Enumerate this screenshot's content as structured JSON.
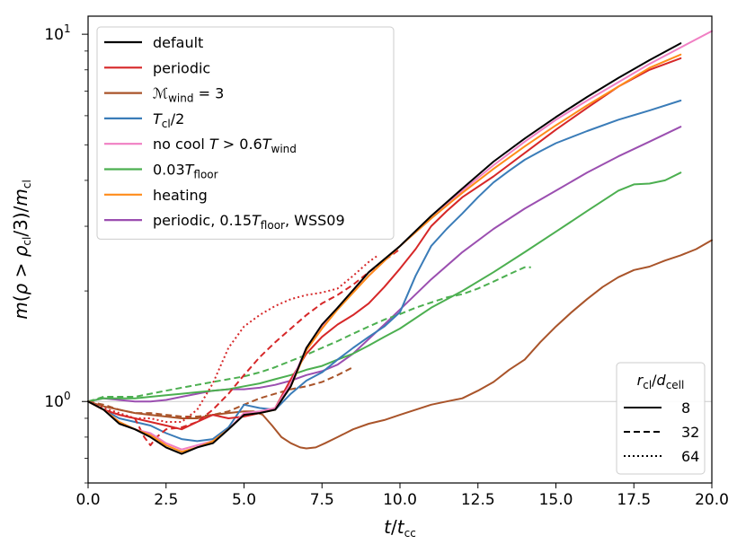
{
  "chart_data": {
    "type": "line",
    "title": "",
    "xlabel": {
      "main": "t/t",
      "sub": "cc"
    },
    "ylabel": {
      "main": "m(ρ > ρ",
      "sub1": "cl",
      "mid": "/3)/m",
      "sub2": "cl"
    },
    "xlim": [
      0,
      20
    ],
    "ylim": [
      0.6,
      11.2
    ],
    "yscale": "log",
    "grid": false,
    "x_ticks": [
      {
        "value": 0,
        "label": "0.0"
      },
      {
        "value": 2.5,
        "label": "2.5"
      },
      {
        "value": 5,
        "label": "5.0"
      },
      {
        "value": 7.5,
        "label": "7.5"
      },
      {
        "value": 10,
        "label": "10.0"
      },
      {
        "value": 12.5,
        "label": "12.5"
      },
      {
        "value": 15,
        "label": "15.0"
      },
      {
        "value": 17.5,
        "label": "17.5"
      },
      {
        "value": 20,
        "label": "20.0"
      }
    ],
    "y_ticks": [
      {
        "value": 1,
        "base": "10",
        "exp": "0"
      },
      {
        "value": 10,
        "base": "10",
        "exp": "1"
      }
    ],
    "reference_line": {
      "y": 1,
      "color": "#cccccc"
    },
    "legend_series": {
      "position": "top-left",
      "entries": [
        {
          "color": "#000000",
          "parts": [
            {
              "t": "default"
            }
          ]
        },
        {
          "color": "#d62728",
          "parts": [
            {
              "t": "periodic"
            }
          ]
        },
        {
          "color": "#a9542a",
          "parts": [
            {
              "t": "ℳ",
              "cls": "it"
            },
            {
              "t": "wind",
              "sub": true
            },
            {
              "t": " = 3"
            }
          ]
        },
        {
          "color": "#3a7cb8",
          "parts": [
            {
              "t": "T",
              "it": true
            },
            {
              "t": "cl",
              "sub": true
            },
            {
              "t": "/2"
            }
          ]
        },
        {
          "color": "#f07fc3",
          "parts": [
            {
              "t": "no cool "
            },
            {
              "t": "T",
              "it": true
            },
            {
              "t": " > 0.6"
            },
            {
              "t": "T",
              "it": true
            },
            {
              "t": "wind",
              "sub": true
            }
          ]
        },
        {
          "color": "#4caf50",
          "parts": [
            {
              "t": "0.03"
            },
            {
              "t": "T",
              "it": true
            },
            {
              "t": "floor",
              "sub": true
            }
          ]
        },
        {
          "color": "#ff8c1a",
          "parts": [
            {
              "t": "heating"
            }
          ]
        },
        {
          "color": "#9b4fb0",
          "parts": [
            {
              "t": "periodic, 0.15"
            },
            {
              "t": "T",
              "it": true
            },
            {
              "t": "floor",
              "sub": true
            },
            {
              "t": ", WSS09"
            }
          ]
        }
      ]
    },
    "legend_resolution": {
      "position": "bottom-right",
      "title": {
        "main": "r",
        "sub1": "cl",
        "mid": "/d",
        "sub2": "cell"
      },
      "entries": [
        {
          "style": "solid",
          "label": "8"
        },
        {
          "style": "dashed",
          "label": "32"
        },
        {
          "style": "dotted",
          "label": "64"
        }
      ]
    },
    "series": [
      {
        "name": "periodic, 0.15Tfloor, WSS09",
        "resolution": "8",
        "color": "#9b4fb0",
        "style": "solid",
        "x": [
          0,
          0.5,
          1,
          1.5,
          2,
          2.5,
          3,
          3.5,
          4,
          4.5,
          5,
          5.5,
          6,
          6.5,
          7,
          7.5,
          8,
          8.5,
          9,
          9.5,
          10,
          11,
          12,
          13,
          14,
          15,
          16,
          17,
          18,
          19
        ],
        "y": [
          1.0,
          1.02,
          1.01,
          1.0,
          1.0,
          1.01,
          1.03,
          1.05,
          1.07,
          1.08,
          1.08,
          1.09,
          1.11,
          1.14,
          1.18,
          1.21,
          1.26,
          1.35,
          1.48,
          1.62,
          1.78,
          2.15,
          2.55,
          2.95,
          3.35,
          3.75,
          4.2,
          4.65,
          5.1,
          5.6
        ]
      },
      {
        "name": "0.03Tfloor",
        "resolution": "8",
        "color": "#4caf50",
        "style": "solid",
        "x": [
          0,
          0.5,
          1,
          1.5,
          2,
          2.5,
          3,
          3.5,
          4,
          4.5,
          5,
          5.5,
          6,
          6.5,
          7,
          7.5,
          8,
          8.5,
          9,
          9.5,
          10,
          11,
          12,
          13,
          14,
          15,
          16,
          17,
          17.5,
          18,
          18.5,
          19
        ],
        "y": [
          1.0,
          1.02,
          1.02,
          1.02,
          1.03,
          1.04,
          1.05,
          1.06,
          1.07,
          1.08,
          1.1,
          1.12,
          1.15,
          1.18,
          1.22,
          1.25,
          1.3,
          1.35,
          1.42,
          1.5,
          1.58,
          1.8,
          2.0,
          2.25,
          2.55,
          2.9,
          3.3,
          3.75,
          3.9,
          3.92,
          4.0,
          4.2
        ]
      },
      {
        "name": "0.03Tfloor",
        "resolution": "32",
        "color": "#4caf50",
        "style": "dashed",
        "x": [
          0,
          0.5,
          1,
          1.5,
          2,
          2.5,
          3,
          3.5,
          4,
          4.5,
          5,
          5.5,
          6,
          6.5,
          7,
          7.5,
          8,
          8.5,
          9,
          9.5,
          10,
          10.5,
          11,
          11.5,
          12,
          12.5,
          13,
          13.5,
          14,
          14.2
        ],
        "y": [
          1.0,
          1.03,
          1.03,
          1.03,
          1.05,
          1.07,
          1.09,
          1.11,
          1.13,
          1.15,
          1.17,
          1.2,
          1.24,
          1.29,
          1.34,
          1.4,
          1.46,
          1.53,
          1.6,
          1.67,
          1.73,
          1.8,
          1.86,
          1.92,
          1.96,
          2.03,
          2.12,
          2.22,
          2.32,
          2.32
        ]
      },
      {
        "name": "Mwind = 3",
        "resolution": "8",
        "color": "#a9542a",
        "style": "solid",
        "x": [
          0,
          0.5,
          1,
          1.5,
          2,
          2.5,
          3,
          3.5,
          4,
          4.5,
          5,
          5.3,
          5.6,
          5.9,
          6.2,
          6.5,
          6.8,
          7,
          7.3,
          7.6,
          8,
          8.5,
          9,
          9.5,
          10,
          10.5,
          11,
          11.5,
          12,
          12.5,
          13,
          13.5,
          14,
          14.5,
          15,
          15.5,
          16,
          16.5,
          17,
          17.5,
          18,
          18.5,
          19,
          19.5,
          20
        ],
        "y": [
          1.0,
          0.97,
          0.95,
          0.93,
          0.92,
          0.91,
          0.9,
          0.9,
          0.92,
          0.93,
          0.94,
          0.94,
          0.92,
          0.86,
          0.8,
          0.77,
          0.75,
          0.745,
          0.75,
          0.77,
          0.8,
          0.84,
          0.87,
          0.89,
          0.92,
          0.95,
          0.98,
          1.0,
          1.02,
          1.07,
          1.13,
          1.22,
          1.3,
          1.45,
          1.6,
          1.75,
          1.9,
          2.05,
          2.18,
          2.28,
          2.33,
          2.42,
          2.5,
          2.6,
          2.75
        ]
      },
      {
        "name": "Mwind = 3",
        "resolution": "32",
        "color": "#a9542a",
        "style": "dashed",
        "x": [
          0,
          0.5,
          1,
          1.5,
          2,
          2.5,
          3,
          3.5,
          4,
          4.5,
          5,
          5.5,
          6,
          6.5,
          7,
          7.5,
          8,
          8.5
        ],
        "y": [
          1.0,
          0.98,
          0.95,
          0.93,
          0.93,
          0.92,
          0.91,
          0.91,
          0.92,
          0.94,
          0.98,
          1.02,
          1.05,
          1.08,
          1.1,
          1.13,
          1.18,
          1.24
        ]
      },
      {
        "name": "Tcl/2",
        "resolution": "8",
        "color": "#3a7cb8",
        "style": "solid",
        "x": [
          0,
          0.5,
          1,
          1.5,
          2,
          2.5,
          3,
          3.5,
          4,
          4.5,
          5,
          5.5,
          6,
          6.5,
          7,
          7.5,
          8,
          8.5,
          9,
          9.5,
          10,
          10.5,
          11,
          11.5,
          12,
          12.5,
          13,
          13.5,
          14,
          14.5,
          15,
          16,
          17,
          18,
          19
        ],
        "y": [
          1.0,
          0.95,
          0.9,
          0.88,
          0.86,
          0.82,
          0.79,
          0.78,
          0.79,
          0.85,
          0.98,
          0.96,
          0.95,
          1.05,
          1.14,
          1.2,
          1.3,
          1.4,
          1.5,
          1.6,
          1.75,
          2.2,
          2.65,
          2.95,
          3.25,
          3.6,
          3.95,
          4.25,
          4.55,
          4.8,
          5.05,
          5.45,
          5.85,
          6.2,
          6.6
        ]
      },
      {
        "name": "periodic",
        "resolution": "8",
        "color": "#d62728",
        "style": "solid",
        "x": [
          0,
          0.5,
          1,
          1.5,
          2,
          2.5,
          3,
          3.5,
          4,
          4.5,
          5,
          5.5,
          6,
          6.5,
          7,
          7.5,
          8,
          8.5,
          9,
          9.5,
          10,
          10.5,
          11,
          11.5,
          12,
          13,
          14,
          15,
          16,
          17,
          18,
          19
        ],
        "y": [
          1.0,
          0.95,
          0.92,
          0.9,
          0.88,
          0.86,
          0.84,
          0.88,
          0.92,
          0.9,
          0.91,
          0.93,
          0.96,
          1.15,
          1.35,
          1.5,
          1.62,
          1.72,
          1.85,
          2.05,
          2.3,
          2.6,
          3.0,
          3.3,
          3.6,
          4.1,
          4.75,
          5.5,
          6.3,
          7.2,
          8.0,
          8.6
        ]
      },
      {
        "name": "periodic",
        "resolution": "32",
        "color": "#d62728",
        "style": "dashed",
        "x": [
          0,
          0.5,
          1,
          1.5,
          1.8,
          2,
          2.2,
          2.5,
          3,
          3.5,
          4,
          4.5,
          5,
          5.5,
          6,
          6.5,
          7,
          7.5,
          8,
          8.5,
          9,
          9.5,
          10
        ],
        "y": [
          1.0,
          0.95,
          0.92,
          0.9,
          0.8,
          0.76,
          0.8,
          0.84,
          0.85,
          0.88,
          0.95,
          1.05,
          1.18,
          1.32,
          1.45,
          1.58,
          1.72,
          1.85,
          1.95,
          2.08,
          2.25,
          2.42,
          2.6
        ]
      },
      {
        "name": "periodic",
        "resolution": "64",
        "color": "#d62728",
        "style": "dotted",
        "x": [
          0,
          0.5,
          1,
          1.5,
          2,
          2.5,
          3,
          3.5,
          4,
          4.5,
          5,
          5.5,
          6,
          6.5,
          7,
          7.5,
          8,
          8.5,
          9,
          9.3
        ],
        "y": [
          1.0,
          0.96,
          0.93,
          0.9,
          0.9,
          0.88,
          0.88,
          0.95,
          1.12,
          1.4,
          1.6,
          1.72,
          1.82,
          1.9,
          1.95,
          1.98,
          2.03,
          2.2,
          2.4,
          2.5
        ]
      },
      {
        "name": "no cool T > 0.6Twind",
        "resolution": "8",
        "color": "#f07fc3",
        "style": "solid",
        "x": [
          0,
          0.5,
          1,
          1.5,
          2,
          2.5,
          3,
          3.5,
          4,
          4.5,
          5,
          5.5,
          6,
          6.5,
          7,
          7.5,
          8,
          9,
          10,
          11,
          12,
          13,
          14,
          15,
          16,
          17,
          18,
          19,
          20
        ],
        "y": [
          1.0,
          0.95,
          0.88,
          0.84,
          0.82,
          0.77,
          0.74,
          0.76,
          0.78,
          0.84,
          0.93,
          0.94,
          0.96,
          1.12,
          1.4,
          1.6,
          1.8,
          2.2,
          2.65,
          3.15,
          3.75,
          4.4,
          5.1,
          5.85,
          6.6,
          7.4,
          8.3,
          9.2,
          10.2
        ]
      },
      {
        "name": "heating",
        "resolution": "8",
        "color": "#ff8c1a",
        "style": "solid",
        "x": [
          0,
          0.5,
          1,
          1.5,
          2,
          2.5,
          3,
          3.5,
          4,
          4.5,
          5,
          5.5,
          6,
          6.5,
          7,
          7.5,
          8,
          9,
          10,
          11,
          12,
          13,
          14,
          15,
          16,
          17,
          18,
          19
        ],
        "y": [
          1.0,
          0.95,
          0.88,
          0.84,
          0.81,
          0.76,
          0.73,
          0.75,
          0.78,
          0.84,
          0.92,
          0.93,
          0.95,
          1.1,
          1.38,
          1.58,
          1.78,
          2.2,
          2.65,
          3.15,
          3.7,
          4.3,
          4.95,
          5.65,
          6.4,
          7.2,
          8.1,
          8.8
        ]
      },
      {
        "name": "default",
        "resolution": "8",
        "color": "#000000",
        "style": "solid",
        "x": [
          0,
          0.5,
          1,
          1.5,
          2,
          2.5,
          3,
          3.5,
          4,
          4.5,
          5,
          5.5,
          6,
          6.5,
          7,
          7.5,
          8,
          9,
          10,
          11,
          12,
          13,
          14,
          15,
          16,
          17,
          18,
          19
        ],
        "y": [
          1.0,
          0.95,
          0.87,
          0.84,
          0.8,
          0.75,
          0.72,
          0.75,
          0.77,
          0.84,
          0.92,
          0.93,
          0.95,
          1.1,
          1.4,
          1.62,
          1.8,
          2.25,
          2.65,
          3.2,
          3.8,
          4.5,
          5.2,
          5.95,
          6.75,
          7.6,
          8.5,
          9.45
        ]
      }
    ]
  }
}
